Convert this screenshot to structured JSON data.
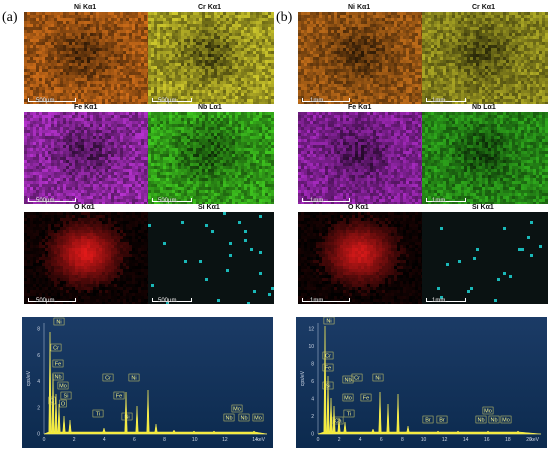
{
  "figure": {
    "panels": [
      {
        "label": "(a)",
        "maps": [
          {
            "element": "Ni Kα1",
            "scale": "500μm",
            "color": "#c86a18"
          },
          {
            "element": "Cr Kα1",
            "scale": "500μm",
            "color": "#c6c02a"
          },
          {
            "element": "Fe Kα1",
            "scale": "500μm",
            "color": "#b030c8"
          },
          {
            "element": "Nb Lα1",
            "scale": "500μm",
            "color": "#3cc01e"
          },
          {
            "element": "O Kα1",
            "scale": "500μm",
            "color": "#d81818"
          },
          {
            "element": "Si Kα1",
            "scale": "500μm",
            "color": "#1ab8b8"
          }
        ],
        "spectrum": {
          "ylabel": "cps/eV",
          "xlabel": "keV",
          "xticks": [
            "0",
            "2",
            "4",
            "6",
            "8",
            "10",
            "12",
            "14"
          ],
          "yticks": [
            "0",
            "2",
            "4",
            "6",
            "8"
          ],
          "peaks": [
            "Ni",
            "Cr",
            "Fe",
            "Nb",
            "Mo",
            "Si",
            "O",
            "C",
            "Cr",
            "Ni",
            "Fe",
            "Ti",
            "Ni",
            "Mo",
            "Nb",
            "Nb",
            "Mo"
          ]
        }
      },
      {
        "label": "(b)",
        "maps": [
          {
            "element": "Ni Kα1",
            "scale": "1mm",
            "color": "#b86818"
          },
          {
            "element": "Cr Kα1",
            "scale": "1mm",
            "color": "#a8a424"
          },
          {
            "element": "Fe Kα1",
            "scale": "1mm",
            "color": "#a028b8"
          },
          {
            "element": "Nb Lα1",
            "scale": "1mm",
            "color": "#2ea81c"
          },
          {
            "element": "O Kα1",
            "scale": "1mm",
            "color": "#d01818"
          },
          {
            "element": "Si Kα1",
            "scale": "1mm",
            "color": "#1ab8b8"
          }
        ],
        "spectrum": {
          "ylabel": "cps/eV",
          "xlabel": "keV",
          "xticks": [
            "0",
            "2",
            "4",
            "6",
            "8",
            "10",
            "12",
            "14",
            "16",
            "18",
            "20"
          ],
          "yticks": [
            "0",
            "2",
            "4",
            "6",
            "8",
            "10",
            "12"
          ],
          "peaks": [
            "Ni",
            "Cr",
            "Fe",
            "Nb",
            "Si",
            "Mo",
            "Cr",
            "Ni",
            "Fe",
            "Ti",
            "Ca",
            "Br",
            "Br",
            "Mo",
            "Nb",
            "Nb",
            "Mo"
          ]
        }
      }
    ]
  }
}
